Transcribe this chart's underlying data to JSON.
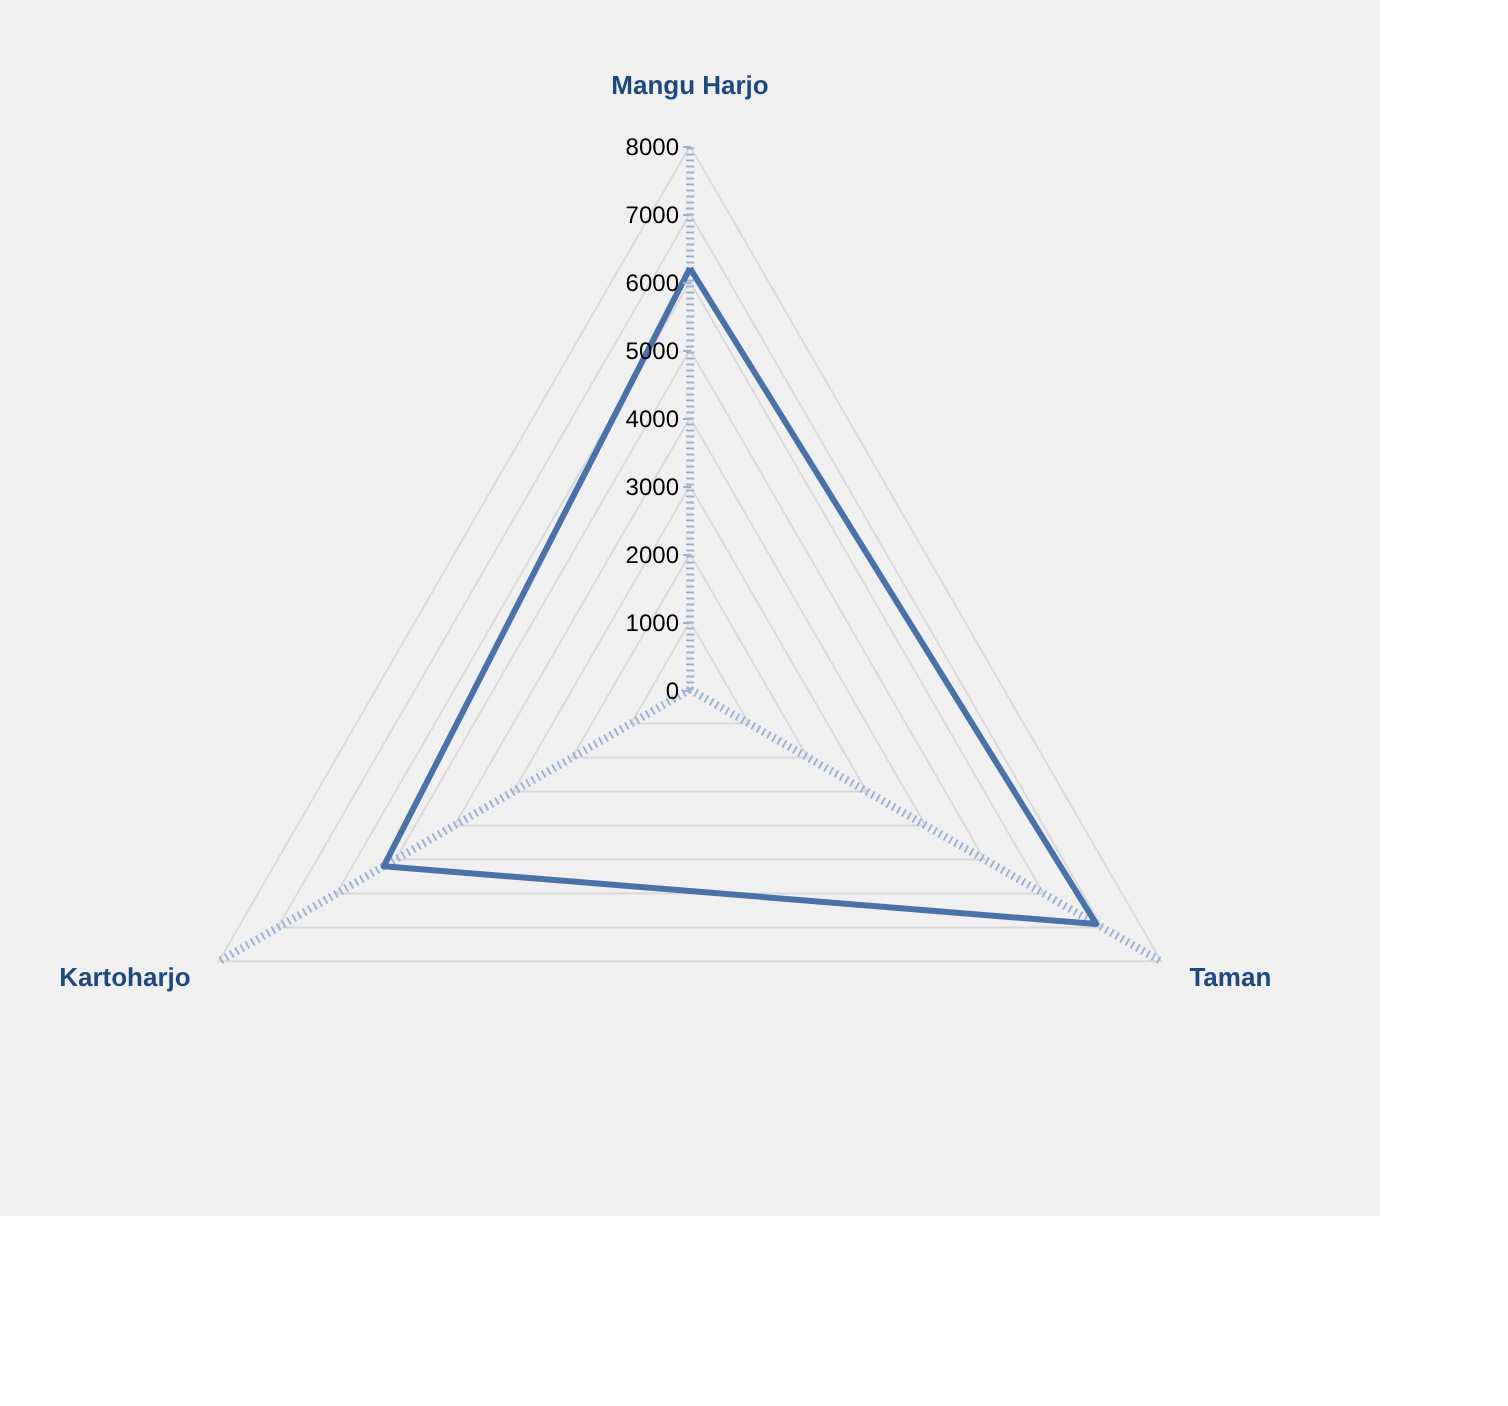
{
  "chart_data": {
    "type": "radar",
    "categories": [
      "Mangu Harjo",
      "Taman",
      "Kartoharjo"
    ],
    "series": [
      {
        "color": "#4a72a8",
        "values": [
          6200,
          6900,
          5200
        ]
      }
    ],
    "ylim": [
      0,
      8000
    ],
    "yticks": [
      0,
      1000,
      2000,
      3000,
      4000,
      5000,
      6000,
      7000,
      8000
    ],
    "grid": true
  }
}
